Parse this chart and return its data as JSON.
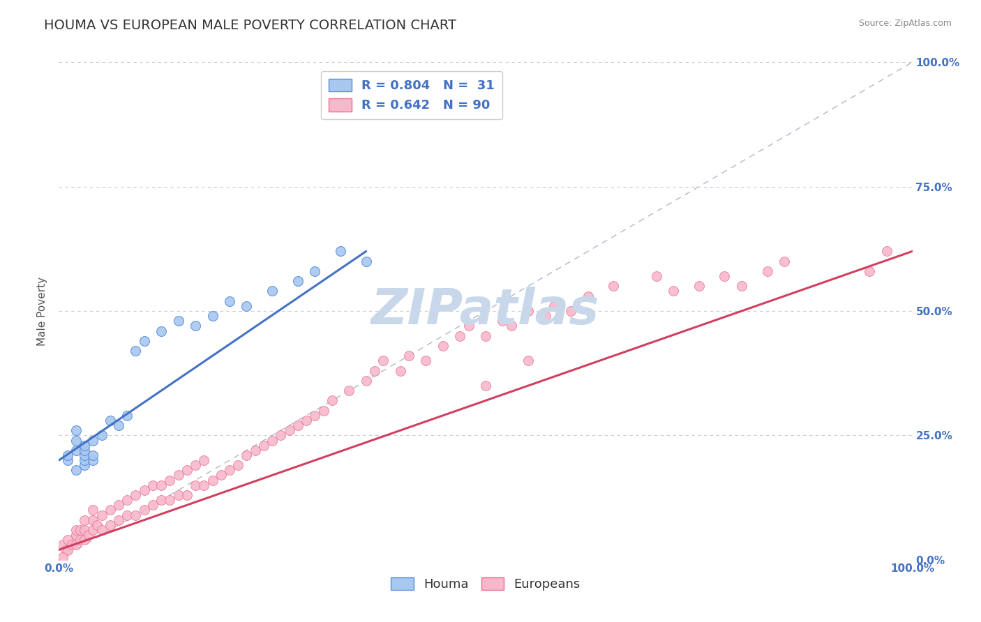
{
  "title": "HOUMA VS EUROPEAN MALE POVERTY CORRELATION CHART",
  "source_text": "Source: ZipAtlas.com",
  "ylabel": "Male Poverty",
  "xlim": [
    0,
    1
  ],
  "ylim": [
    0,
    1
  ],
  "x_tick_labels": [
    "0.0%",
    "100.0%"
  ],
  "y_tick_labels": [
    "0.0%",
    "25.0%",
    "50.0%",
    "75.0%",
    "100.0%"
  ],
  "y_tick_positions": [
    0,
    0.25,
    0.5,
    0.75,
    1.0
  ],
  "houma_color": "#a8c8f0",
  "houma_edge_color": "#5b8dd9",
  "europeans_color": "#f8b8cc",
  "europeans_edge_color": "#e87090",
  "houma_line_color": "#4472c4",
  "europeans_line_color": "#d04060",
  "houma_R": 0.804,
  "houma_N": 31,
  "europeans_R": 0.642,
  "europeans_N": 90,
  "legend_label_houma": "R = 0.804   N =  31",
  "legend_label_europeans": "R = 0.642   N = 90",
  "houma_x": [
    0.01,
    0.01,
    0.02,
    0.02,
    0.02,
    0.02,
    0.03,
    0.03,
    0.03,
    0.03,
    0.03,
    0.04,
    0.04,
    0.04,
    0.05,
    0.06,
    0.07,
    0.08,
    0.09,
    0.1,
    0.12,
    0.14,
    0.16,
    0.18,
    0.2,
    0.22,
    0.25,
    0.28,
    0.3,
    0.33,
    0.36
  ],
  "houma_y": [
    0.2,
    0.21,
    0.18,
    0.22,
    0.24,
    0.26,
    0.19,
    0.2,
    0.21,
    0.22,
    0.23,
    0.2,
    0.21,
    0.24,
    0.25,
    0.28,
    0.27,
    0.29,
    0.42,
    0.44,
    0.46,
    0.48,
    0.47,
    0.49,
    0.52,
    0.51,
    0.54,
    0.56,
    0.58,
    0.62,
    0.6
  ],
  "europeans_x": [
    0.005,
    0.008,
    0.01,
    0.01,
    0.015,
    0.02,
    0.02,
    0.02,
    0.025,
    0.025,
    0.03,
    0.03,
    0.03,
    0.035,
    0.04,
    0.04,
    0.04,
    0.045,
    0.05,
    0.05,
    0.06,
    0.06,
    0.07,
    0.07,
    0.08,
    0.08,
    0.09,
    0.09,
    0.1,
    0.1,
    0.11,
    0.11,
    0.12,
    0.12,
    0.13,
    0.13,
    0.14,
    0.14,
    0.15,
    0.15,
    0.16,
    0.16,
    0.17,
    0.17,
    0.18,
    0.19,
    0.2,
    0.21,
    0.22,
    0.23,
    0.24,
    0.25,
    0.26,
    0.27,
    0.28,
    0.29,
    0.3,
    0.31,
    0.32,
    0.34,
    0.36,
    0.37,
    0.38,
    0.4,
    0.41,
    0.43,
    0.45,
    0.47,
    0.48,
    0.5,
    0.52,
    0.53,
    0.55,
    0.57,
    0.58,
    0.6,
    0.62,
    0.65,
    0.7,
    0.72,
    0.75,
    0.78,
    0.8,
    0.83,
    0.85,
    0.55,
    0.5,
    0.95,
    0.97,
    0.005
  ],
  "europeans_y": [
    0.03,
    0.02,
    0.02,
    0.04,
    0.03,
    0.03,
    0.05,
    0.06,
    0.04,
    0.06,
    0.04,
    0.06,
    0.08,
    0.05,
    0.06,
    0.08,
    0.1,
    0.07,
    0.06,
    0.09,
    0.07,
    0.1,
    0.08,
    0.11,
    0.09,
    0.12,
    0.09,
    0.13,
    0.1,
    0.14,
    0.11,
    0.15,
    0.12,
    0.15,
    0.12,
    0.16,
    0.13,
    0.17,
    0.13,
    0.18,
    0.15,
    0.19,
    0.15,
    0.2,
    0.16,
    0.17,
    0.18,
    0.19,
    0.21,
    0.22,
    0.23,
    0.24,
    0.25,
    0.26,
    0.27,
    0.28,
    0.29,
    0.3,
    0.32,
    0.34,
    0.36,
    0.38,
    0.4,
    0.38,
    0.41,
    0.4,
    0.43,
    0.45,
    0.47,
    0.45,
    0.48,
    0.47,
    0.5,
    0.49,
    0.51,
    0.5,
    0.53,
    0.55,
    0.57,
    0.54,
    0.55,
    0.57,
    0.55,
    0.58,
    0.6,
    0.4,
    0.35,
    0.58,
    0.62,
    0.005
  ],
  "background_color": "#ffffff",
  "grid_color": "#cccccc",
  "title_fontsize": 14,
  "axis_label_fontsize": 11,
  "tick_fontsize": 11,
  "legend_fontsize": 13,
  "marker_size": 100,
  "line_width": 2.2,
  "watermark_text": "ZIPatlas",
  "watermark_color": "#c8d8ea",
  "watermark_fontsize": 52
}
